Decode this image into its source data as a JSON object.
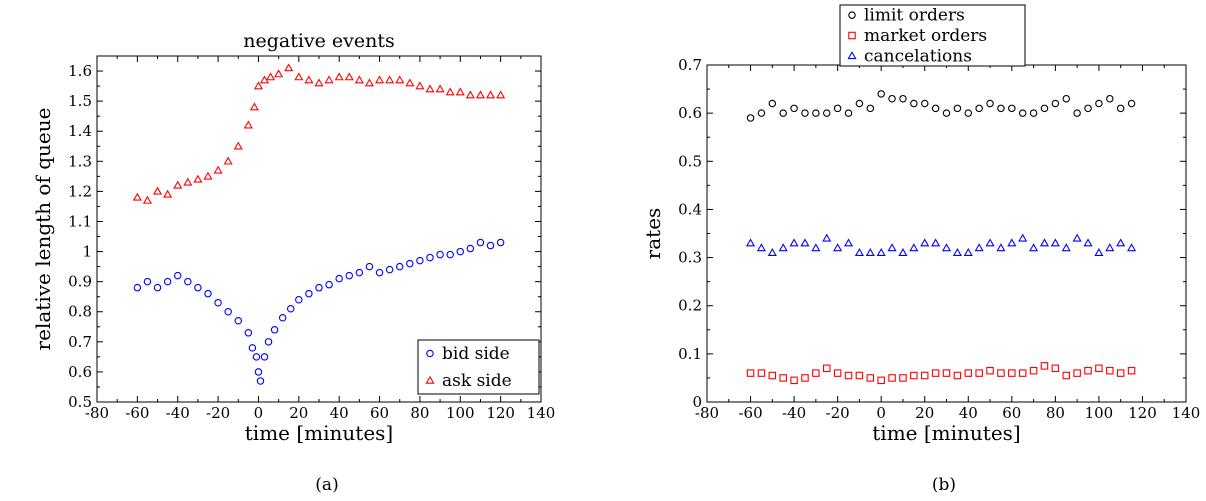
{
  "chart_data": [
    {
      "type": "scatter",
      "panel": "a",
      "title": "negative events",
      "xlabel": "time [minutes]",
      "ylabel": "relative length of queue",
      "xlim": [
        -80,
        140
      ],
      "ylim": [
        0.5,
        1.65
      ],
      "xticks": [
        "-80",
        "-60",
        "-40",
        "-20",
        "0",
        "20",
        "40",
        "60",
        "80",
        "100",
        "120",
        "140"
      ],
      "yticks": [
        "0.5",
        "0.6",
        "0.7",
        "0.8",
        "0.9",
        "1",
        "1.1",
        "1.2",
        "1.3",
        "1.4",
        "1.5",
        "1.6"
      ],
      "legend_position": "bottom-right",
      "caption": "(a)",
      "series": [
        {
          "name": "bid side",
          "marker": "circle",
          "color": "#0000ff",
          "points": [
            [
              -60,
              0.88
            ],
            [
              -55,
              0.9
            ],
            [
              -50,
              0.88
            ],
            [
              -45,
              0.9
            ],
            [
              -40,
              0.92
            ],
            [
              -35,
              0.9
            ],
            [
              -30,
              0.88
            ],
            [
              -25,
              0.86
            ],
            [
              -20,
              0.83
            ],
            [
              -15,
              0.8
            ],
            [
              -10,
              0.77
            ],
            [
              -5,
              0.73
            ],
            [
              -3,
              0.68
            ],
            [
              -1,
              0.65
            ],
            [
              0,
              0.6
            ],
            [
              1,
              0.57
            ],
            [
              3,
              0.65
            ],
            [
              5,
              0.7
            ],
            [
              8,
              0.74
            ],
            [
              12,
              0.78
            ],
            [
              16,
              0.81
            ],
            [
              20,
              0.84
            ],
            [
              25,
              0.86
            ],
            [
              30,
              0.88
            ],
            [
              35,
              0.89
            ],
            [
              40,
              0.91
            ],
            [
              45,
              0.92
            ],
            [
              50,
              0.93
            ],
            [
              55,
              0.95
            ],
            [
              60,
              0.93
            ],
            [
              65,
              0.94
            ],
            [
              70,
              0.95
            ],
            [
              75,
              0.96
            ],
            [
              80,
              0.97
            ],
            [
              85,
              0.98
            ],
            [
              90,
              0.99
            ],
            [
              95,
              0.99
            ],
            [
              100,
              1.0
            ],
            [
              105,
              1.01
            ],
            [
              110,
              1.03
            ],
            [
              115,
              1.02
            ],
            [
              120,
              1.03
            ]
          ]
        },
        {
          "name": "ask side",
          "marker": "triangle",
          "color": "#ff0000",
          "points": [
            [
              -60,
              1.18
            ],
            [
              -55,
              1.17
            ],
            [
              -50,
              1.2
            ],
            [
              -45,
              1.19
            ],
            [
              -40,
              1.22
            ],
            [
              -35,
              1.23
            ],
            [
              -30,
              1.24
            ],
            [
              -25,
              1.25
            ],
            [
              -20,
              1.27
            ],
            [
              -15,
              1.3
            ],
            [
              -10,
              1.35
            ],
            [
              -5,
              1.42
            ],
            [
              -2,
              1.48
            ],
            [
              0,
              1.55
            ],
            [
              3,
              1.57
            ],
            [
              6,
              1.58
            ],
            [
              10,
              1.59
            ],
            [
              15,
              1.61
            ],
            [
              20,
              1.58
            ],
            [
              25,
              1.57
            ],
            [
              30,
              1.56
            ],
            [
              35,
              1.57
            ],
            [
              40,
              1.58
            ],
            [
              45,
              1.58
            ],
            [
              50,
              1.57
            ],
            [
              55,
              1.56
            ],
            [
              60,
              1.57
            ],
            [
              65,
              1.57
            ],
            [
              70,
              1.57
            ],
            [
              75,
              1.56
            ],
            [
              80,
              1.55
            ],
            [
              85,
              1.54
            ],
            [
              90,
              1.54
            ],
            [
              95,
              1.53
            ],
            [
              100,
              1.53
            ],
            [
              105,
              1.52
            ],
            [
              110,
              1.52
            ],
            [
              115,
              1.52
            ],
            [
              120,
              1.52
            ]
          ]
        }
      ]
    },
    {
      "type": "scatter",
      "panel": "b",
      "title": "",
      "xlabel": "time [minutes]",
      "ylabel": "rates",
      "xlim": [
        -80,
        140
      ],
      "ylim": [
        0,
        0.7
      ],
      "xticks": [
        "-80",
        "-60",
        "-40",
        "-20",
        "0",
        "20",
        "40",
        "60",
        "80",
        "100",
        "120",
        "140"
      ],
      "yticks": [
        "0",
        "0.1",
        "0.2",
        "0.3",
        "0.4",
        "0.5",
        "0.6",
        "0.7"
      ],
      "legend_position": "top-center",
      "caption": "(b)",
      "series": [
        {
          "name": "limit orders",
          "marker": "circle",
          "color": "#000000",
          "points": [
            [
              -60,
              0.59
            ],
            [
              -55,
              0.6
            ],
            [
              -50,
              0.62
            ],
            [
              -45,
              0.6
            ],
            [
              -40,
              0.61
            ],
            [
              -35,
              0.6
            ],
            [
              -30,
              0.6
            ],
            [
              -25,
              0.6
            ],
            [
              -20,
              0.61
            ],
            [
              -15,
              0.6
            ],
            [
              -10,
              0.62
            ],
            [
              -5,
              0.61
            ],
            [
              0,
              0.64
            ],
            [
              5,
              0.63
            ],
            [
              10,
              0.63
            ],
            [
              15,
              0.62
            ],
            [
              20,
              0.62
            ],
            [
              25,
              0.61
            ],
            [
              30,
              0.6
            ],
            [
              35,
              0.61
            ],
            [
              40,
              0.6
            ],
            [
              45,
              0.61
            ],
            [
              50,
              0.62
            ],
            [
              55,
              0.61
            ],
            [
              60,
              0.61
            ],
            [
              65,
              0.6
            ],
            [
              70,
              0.6
            ],
            [
              75,
              0.61
            ],
            [
              80,
              0.62
            ],
            [
              85,
              0.63
            ],
            [
              90,
              0.6
            ],
            [
              95,
              0.61
            ],
            [
              100,
              0.62
            ],
            [
              105,
              0.63
            ],
            [
              110,
              0.61
            ],
            [
              115,
              0.62
            ]
          ]
        },
        {
          "name": "market orders",
          "marker": "square",
          "color": "#ff0000",
          "points": [
            [
              -60,
              0.06
            ],
            [
              -55,
              0.06
            ],
            [
              -50,
              0.055
            ],
            [
              -45,
              0.05
            ],
            [
              -40,
              0.045
            ],
            [
              -35,
              0.05
            ],
            [
              -30,
              0.06
            ],
            [
              -25,
              0.07
            ],
            [
              -20,
              0.06
            ],
            [
              -15,
              0.055
            ],
            [
              -10,
              0.055
            ],
            [
              -5,
              0.05
            ],
            [
              0,
              0.045
            ],
            [
              5,
              0.05
            ],
            [
              10,
              0.05
            ],
            [
              15,
              0.055
            ],
            [
              20,
              0.055
            ],
            [
              25,
              0.06
            ],
            [
              30,
              0.06
            ],
            [
              35,
              0.055
            ],
            [
              40,
              0.06
            ],
            [
              45,
              0.06
            ],
            [
              50,
              0.065
            ],
            [
              55,
              0.06
            ],
            [
              60,
              0.06
            ],
            [
              65,
              0.06
            ],
            [
              70,
              0.065
            ],
            [
              75,
              0.075
            ],
            [
              80,
              0.07
            ],
            [
              85,
              0.055
            ],
            [
              90,
              0.06
            ],
            [
              95,
              0.065
            ],
            [
              100,
              0.07
            ],
            [
              105,
              0.065
            ],
            [
              110,
              0.06
            ],
            [
              115,
              0.065
            ]
          ]
        },
        {
          "name": "cancelations",
          "marker": "triangle",
          "color": "#0000ff",
          "points": [
            [
              -60,
              0.33
            ],
            [
              -55,
              0.32
            ],
            [
              -50,
              0.31
            ],
            [
              -45,
              0.32
            ],
            [
              -40,
              0.33
            ],
            [
              -35,
              0.33
            ],
            [
              -30,
              0.32
            ],
            [
              -25,
              0.34
            ],
            [
              -20,
              0.32
            ],
            [
              -15,
              0.33
            ],
            [
              -10,
              0.31
            ],
            [
              -5,
              0.31
            ],
            [
              0,
              0.31
            ],
            [
              5,
              0.32
            ],
            [
              10,
              0.31
            ],
            [
              15,
              0.32
            ],
            [
              20,
              0.33
            ],
            [
              25,
              0.33
            ],
            [
              30,
              0.32
            ],
            [
              35,
              0.31
            ],
            [
              40,
              0.31
            ],
            [
              45,
              0.32
            ],
            [
              50,
              0.33
            ],
            [
              55,
              0.32
            ],
            [
              60,
              0.33
            ],
            [
              65,
              0.34
            ],
            [
              70,
              0.32
            ],
            [
              75,
              0.33
            ],
            [
              80,
              0.33
            ],
            [
              85,
              0.32
            ],
            [
              90,
              0.34
            ],
            [
              95,
              0.33
            ],
            [
              100,
              0.31
            ],
            [
              105,
              0.32
            ],
            [
              110,
              0.33
            ],
            [
              115,
              0.32
            ]
          ]
        }
      ]
    }
  ]
}
